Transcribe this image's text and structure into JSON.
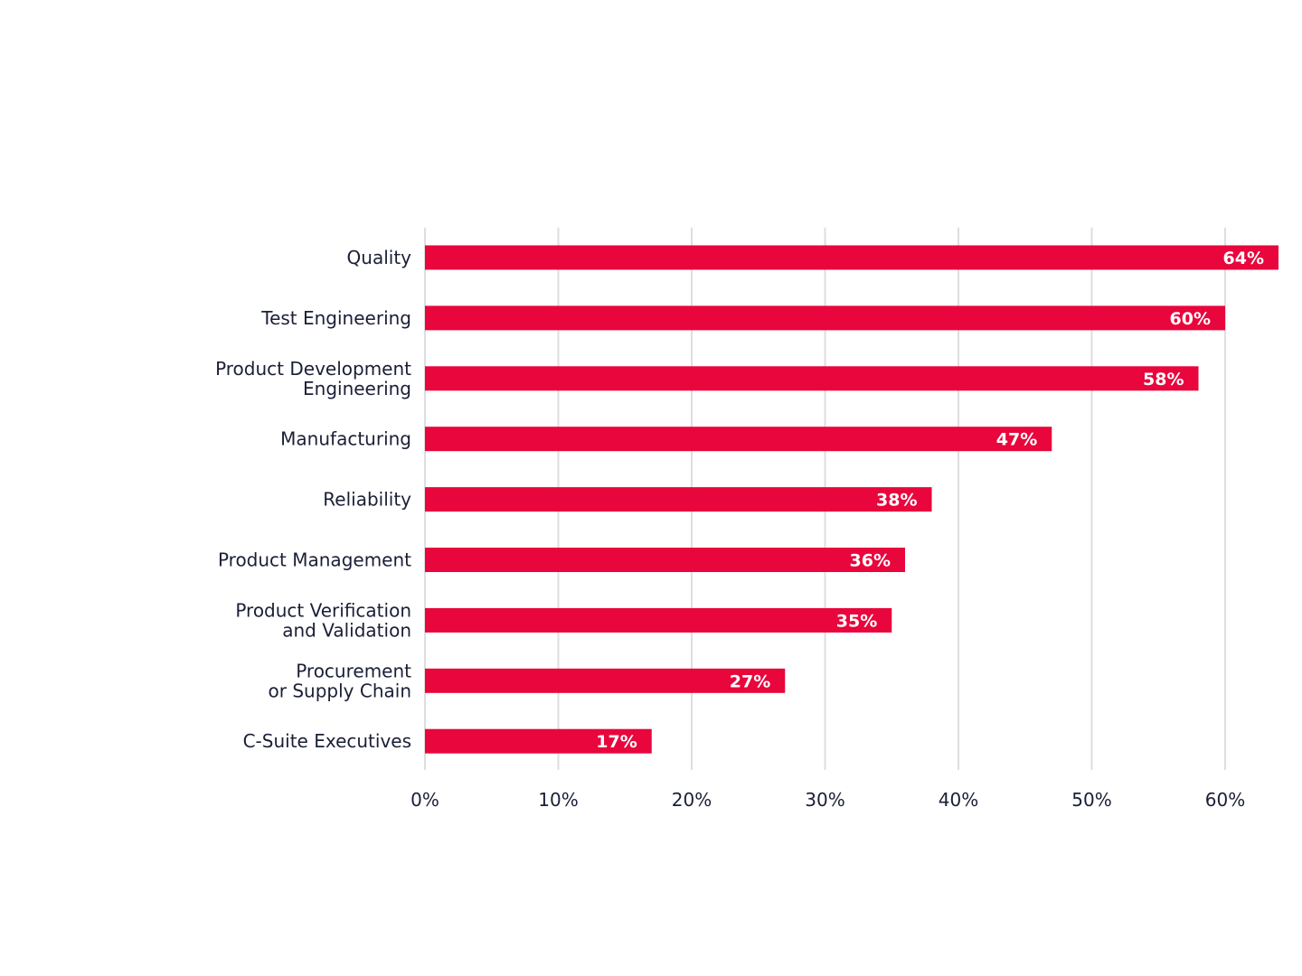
{
  "chart_data": {
    "type": "bar",
    "orientation": "horizontal",
    "categories": [
      [
        "Quality"
      ],
      [
        "Test Engineering"
      ],
      [
        "Product Development",
        "Engineering"
      ],
      [
        "Manufacturing"
      ],
      [
        "Reliability"
      ],
      [
        "Product Management"
      ],
      [
        "Product Verification",
        "and Validation"
      ],
      [
        "Procurement",
        "or Supply Chain"
      ],
      [
        "C-Suite Executives"
      ]
    ],
    "values": [
      64,
      60,
      58,
      47,
      38,
      36,
      35,
      27,
      17
    ],
    "value_labels": [
      "64%",
      "60%",
      "58%",
      "47%",
      "38%",
      "36%",
      "35%",
      "27%",
      "17%"
    ],
    "xticks": [
      0,
      10,
      20,
      30,
      40,
      50,
      60
    ],
    "xtick_labels": [
      "0%",
      "10%",
      "20%",
      "30%",
      "40%",
      "50%",
      "60%"
    ],
    "xlim": [
      0,
      64
    ],
    "title": "",
    "xlabel": "",
    "ylabel": "",
    "grid": "vertical",
    "legend": "none",
    "colors": {
      "bar": "#e8063c",
      "grid": "#dedede",
      "text": "#1a1f36",
      "bar_label": "#ffffff"
    }
  }
}
